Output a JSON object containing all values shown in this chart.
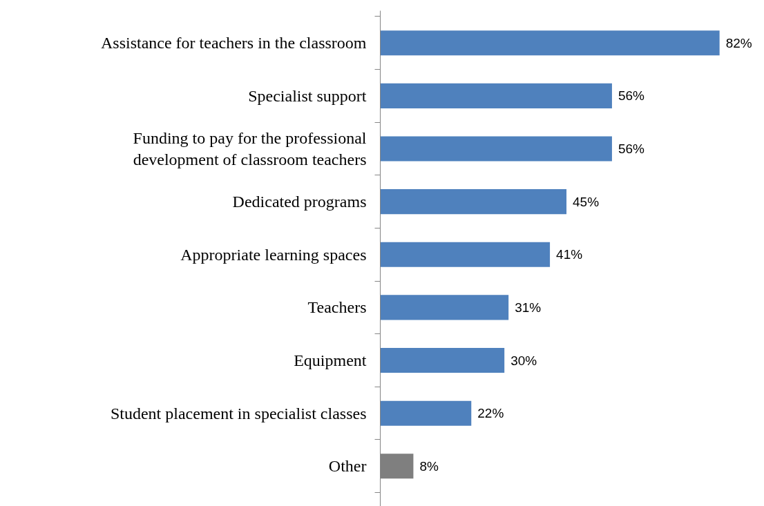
{
  "chart_data": {
    "type": "bar",
    "orientation": "horizontal",
    "categories": [
      "Assistance for teachers in the classroom",
      "Specialist support",
      "Funding to pay for the professional development of classroom teachers",
      "Dedicated programs",
      "Appropriate learning spaces",
      "Teachers",
      "Equipment",
      "Student placement in specialist classes",
      "Other"
    ],
    "values": [
      82,
      56,
      56,
      45,
      41,
      31,
      30,
      22,
      8
    ],
    "colors": [
      "#4f81bd",
      "#4f81bd",
      "#4f81bd",
      "#4f81bd",
      "#4f81bd",
      "#4f81bd",
      "#4f81bd",
      "#4f81bd",
      "#7f7f7f"
    ],
    "value_labels": [
      "82%",
      "56%",
      "56%",
      "45%",
      "41%",
      "31%",
      "30%",
      "22%",
      "8%"
    ],
    "tick_labels": "y"
  }
}
